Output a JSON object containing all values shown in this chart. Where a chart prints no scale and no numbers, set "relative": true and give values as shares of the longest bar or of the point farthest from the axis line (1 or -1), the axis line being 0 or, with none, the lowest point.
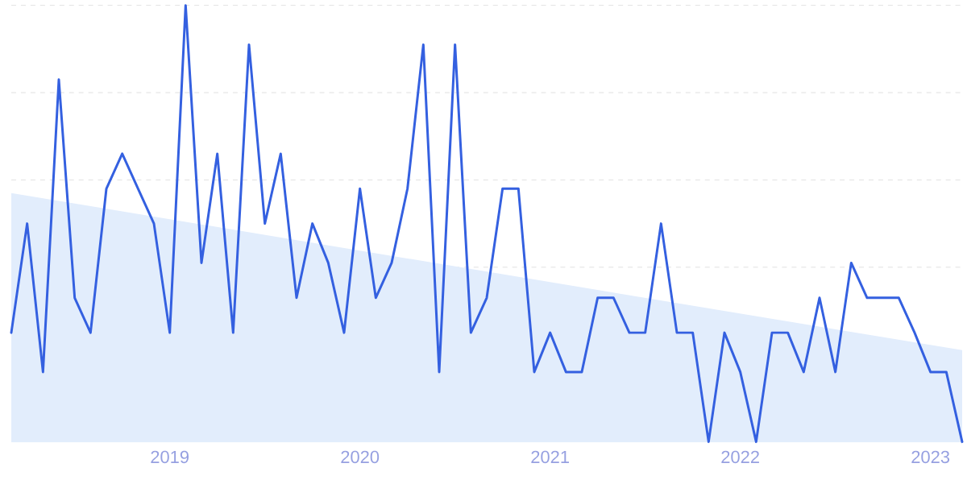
{
  "chart_data": {
    "type": "line",
    "relative": true,
    "grid": "y",
    "line_style": "solid",
    "marker": "none",
    "x": [
      "2018-03",
      "2018-04",
      "2018-05",
      "2018-06",
      "2018-07",
      "2018-08",
      "2018-09",
      "2018-10",
      "2018-11",
      "2018-12",
      "2019-01",
      "2019-02",
      "2019-03",
      "2019-04",
      "2019-05",
      "2019-06",
      "2019-07",
      "2019-08",
      "2019-09",
      "2019-10",
      "2019-11",
      "2019-12",
      "2020-01",
      "2020-02",
      "2020-03",
      "2020-04",
      "2020-05",
      "2020-06",
      "2020-07",
      "2020-08",
      "2020-09",
      "2020-10",
      "2020-11",
      "2020-12",
      "2021-01",
      "2021-02",
      "2021-03",
      "2021-04",
      "2021-05",
      "2021-06",
      "2021-07",
      "2021-08",
      "2021-09",
      "2021-10",
      "2021-11",
      "2021-12",
      "2022-01",
      "2022-02",
      "2022-03",
      "2022-04",
      "2022-05",
      "2022-06",
      "2022-07",
      "2022-08",
      "2022-09",
      "2022-10",
      "2022-11",
      "2022-12",
      "2023-01",
      "2023-02",
      "2023-03"
    ],
    "xlim": [
      "2018-03",
      "2023-03"
    ],
    "xticks": [
      {
        "value": "2019-01",
        "label": "2019"
      },
      {
        "value": "2020-01",
        "label": "2020"
      },
      {
        "value": "2021-01",
        "label": "2021"
      },
      {
        "value": "2022-01",
        "label": "2022"
      },
      {
        "value": "2023-01",
        "label": "2023"
      }
    ],
    "series": [
      {
        "type": "area",
        "color": "#e2edfc",
        "x": [
          "2018-03",
          "2023-03"
        ],
        "values": [
          0.57,
          0.21
        ]
      },
      {
        "color": "#3460e0",
        "values": [
          0.25,
          0.5,
          0.16,
          0.83,
          0.33,
          0.25,
          0.58,
          0.66,
          0.58,
          0.5,
          0.25,
          1,
          0.41,
          0.66,
          0.25,
          0.91,
          0.5,
          0.66,
          0.33,
          0.5,
          0.41,
          0.25,
          0.58,
          0.33,
          0.41,
          0.58,
          0.91,
          0.16,
          0.91,
          0.25,
          0.33,
          0.58,
          0.58,
          0.16,
          0.25,
          0.16,
          0.16,
          0.33,
          0.33,
          0.25,
          0.25,
          0.5,
          0.25,
          0.25,
          0,
          0.25,
          0.16,
          0,
          0.25,
          0.25,
          0.16,
          0.33,
          0.16,
          0.41,
          0.33,
          0.33,
          0.33,
          0.25,
          0.16,
          0.16,
          0
        ]
      }
    ]
  }
}
